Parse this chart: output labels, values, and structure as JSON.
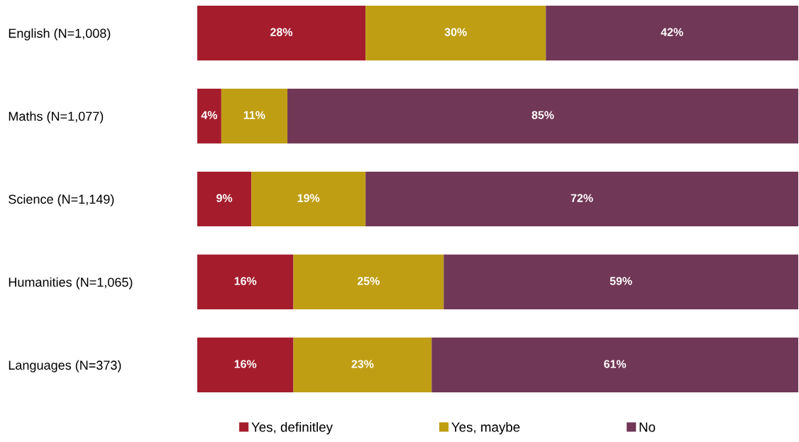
{
  "chart_data": {
    "type": "bar",
    "orientation": "horizontal",
    "stacked": true,
    "categories": [
      "English (N=1,008)",
      "Maths (N=1,077)",
      "Science (N=1,149)",
      "Humanities (N=1,065)",
      "Languages (N=373)"
    ],
    "xlim": [
      0,
      100
    ],
    "tick_labels": "y",
    "legend": "bottom",
    "grid": false,
    "series": [
      {
        "name": "Yes, definitley",
        "color": "#a51d2d",
        "values": [
          28,
          4,
          9,
          16,
          16
        ],
        "value_labels": [
          "28%",
          "4%",
          "9%",
          "16%",
          "16%"
        ]
      },
      {
        "name": "Yes, maybe",
        "color": "#c09e14",
        "values": [
          30,
          11,
          19,
          25,
          23
        ],
        "value_labels": [
          "30%",
          "11%",
          "19%",
          "25%",
          "23%"
        ]
      },
      {
        "name": "No",
        "color": "#713757",
        "values": [
          42,
          85,
          72,
          59,
          61
        ],
        "value_labels": [
          "42%",
          "85%",
          "72%",
          "59%",
          "61%"
        ]
      }
    ]
  }
}
